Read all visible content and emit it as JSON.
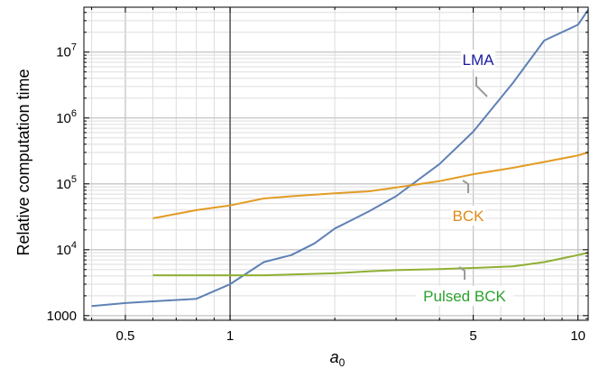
{
  "chart_data": {
    "type": "line",
    "xlabel": "a",
    "xlabel_sub": "0",
    "ylabel": "Relative computation time",
    "x_scale": "log",
    "y_scale": "log",
    "xlim": [
      0.38,
      10.7
    ],
    "ylim": [
      850,
      48000000
    ],
    "grid": true,
    "x_ticks": [
      {
        "value": 0.5,
        "label": "0.5"
      },
      {
        "value": 1,
        "label": "1"
      },
      {
        "value": 5,
        "label": "5"
      },
      {
        "value": 10,
        "label": "10"
      }
    ],
    "y_ticks": [
      {
        "value": 1000,
        "label": "1000"
      },
      {
        "value": 10000,
        "base": "10",
        "exp": "4"
      },
      {
        "value": 100000,
        "base": "10",
        "exp": "5"
      },
      {
        "value": 1000000,
        "base": "10",
        "exp": "6"
      },
      {
        "value": 10000000,
        "base": "10",
        "exp": "7"
      }
    ],
    "vertical_reference_line": 1,
    "series": [
      {
        "name": "LMA",
        "color": "#5e81b5",
        "label_color": "#1a1a9e",
        "x": [
          0.4,
          0.5,
          0.6,
          0.8,
          1.0,
          1.25,
          1.5,
          1.75,
          2.0,
          2.5,
          3.0,
          4.0,
          5.0,
          6.5,
          8.0,
          10.0,
          10.7
        ],
        "y": [
          1400,
          1550,
          1650,
          1800,
          3000,
          6500,
          8300,
          12500,
          21000,
          38000,
          65000,
          200000,
          620000,
          3400000,
          15000000,
          26000000,
          44000000
        ]
      },
      {
        "name": "BCK",
        "color": "#e19c24",
        "label_color": "#e08a18",
        "x": [
          0.6,
          0.8,
          1.0,
          1.25,
          1.5,
          2.0,
          2.5,
          3.0,
          4.0,
          5.0,
          6.5,
          8.0,
          10.0,
          10.7
        ],
        "y": [
          30000,
          40000,
          47000,
          60000,
          65000,
          72000,
          77000,
          88000,
          110000,
          140000,
          175000,
          215000,
          270000,
          300000
        ]
      },
      {
        "name": "Pulsed BCK",
        "color": "#8fb032",
        "label_color": "#2ca02c",
        "x": [
          0.6,
          0.8,
          1.0,
          1.25,
          1.5,
          2.0,
          2.5,
          3.0,
          4.0,
          5.0,
          6.5,
          8.0,
          10.0,
          10.7
        ],
        "y": [
          4100,
          4100,
          4100,
          4100,
          4200,
          4400,
          4700,
          4900,
          5100,
          5300,
          5600,
          6500,
          8300,
          9000
        ]
      }
    ]
  }
}
